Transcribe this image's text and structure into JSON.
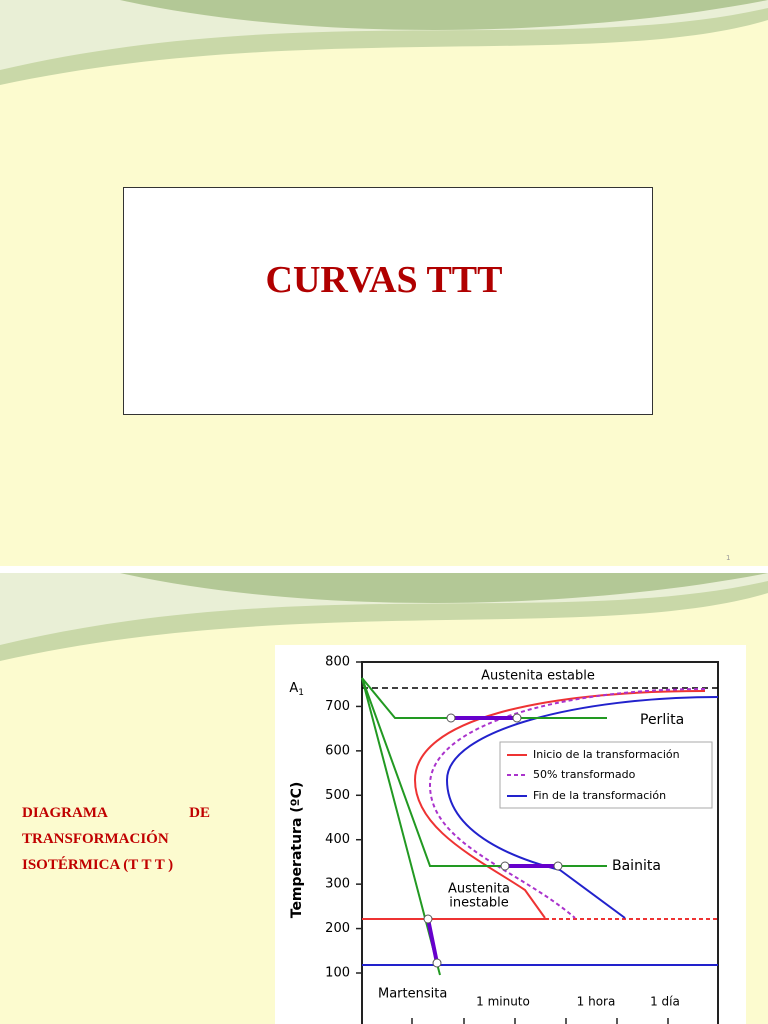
{
  "slides": [
    {
      "title": "CURVAS TTT",
      "page_number": "1"
    },
    {
      "text": "DIAGRAMA DE TRANSFORMACIÓN ISOTÉRMICA (T T T )",
      "figure": {
        "y_axis_label": "Temperatura (ºC)",
        "yticks": [
          100,
          200,
          300,
          400,
          500,
          600,
          700,
          800
        ],
        "a1": {
          "letter": "A",
          "subscript": "1"
        },
        "labels": {
          "austenita_estable": "Austenita estable",
          "perlita": "Perlita",
          "bainita": "Bainita",
          "austenita_inestable": [
            "Austenita",
            "inestable"
          ],
          "martensita": "Martensita"
        },
        "legend": [
          "Inicio de la transformación",
          "50% transformado",
          "Fin de la transformación"
        ],
        "time_labels": [
          "1 minuto",
          "1 hora",
          "1 día"
        ]
      }
    }
  ]
}
